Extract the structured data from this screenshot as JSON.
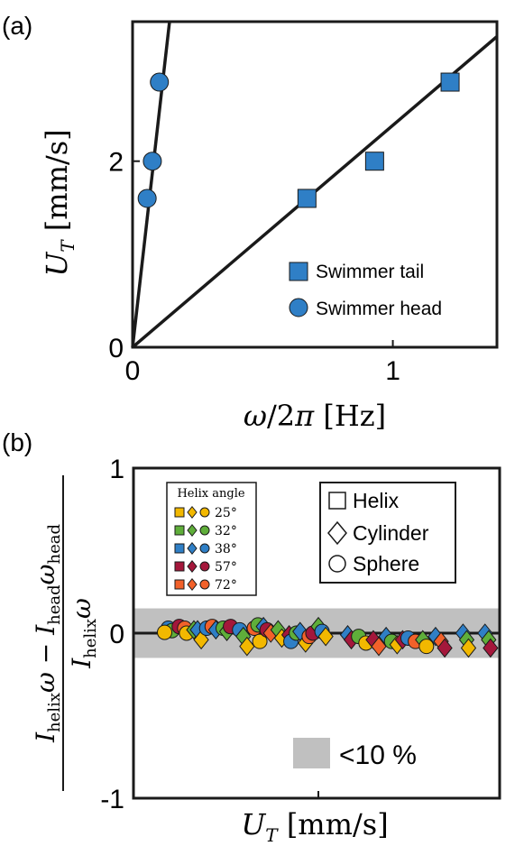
{
  "panel_a": {
    "label": "(a)",
    "chart_data": {
      "type": "scatter",
      "xlabel": "ω/2π [Hz]",
      "ylabel": "U_T [mm/s]",
      "xlim": [
        0,
        1.4
      ],
      "ylim": [
        0,
        3.5
      ],
      "xticks": [
        0,
        1
      ],
      "yticks": [
        0,
        2
      ],
      "xtick_labels": [
        "0",
        "1"
      ],
      "ytick_labels": [
        "0",
        "2"
      ],
      "grid": false,
      "legend_position": "bottom-right",
      "series": [
        {
          "name": "Swimmer tail",
          "marker": "square",
          "color": "#2f7fc6",
          "x": [
            0.67,
            0.93,
            1.22
          ],
          "y": [
            1.6,
            2.0,
            2.85
          ],
          "fit_line": {
            "x": [
              0,
              1.4
            ],
            "y": [
              0,
              3.34
            ]
          }
        },
        {
          "name": "Swimmer head",
          "marker": "circle",
          "color": "#2f7fc6",
          "x": [
            0.056,
            0.076,
            0.103
          ],
          "y": [
            1.6,
            2.0,
            2.85
          ],
          "fit_line": {
            "x": [
              0,
              0.142
            ],
            "y": [
              0,
              3.5
            ]
          }
        }
      ]
    }
  },
  "panel_b": {
    "label": "(b)",
    "ylabel_parts": {
      "i1": "I",
      "s1": "helix",
      "w1": "ω",
      "minus": " − ",
      "i2": "I",
      "s2": "head",
      "w2": "ω",
      "s3": "head",
      "i3": "I",
      "s4": "helix",
      "w3": "ω"
    },
    "xlabel": "U_T [mm/s]",
    "chart_data": {
      "type": "scatter",
      "ylim": [
        -1,
        1
      ],
      "yticks": [
        -1,
        0,
        1
      ],
      "ytick_labels": [
        "-1",
        "0",
        "1"
      ],
      "xlim": [
        0,
        1
      ],
      "grid": false,
      "band": {
        "y_min": -0.15,
        "y_max": 0.15,
        "color": "#c0c0c0",
        "label": "<10 %"
      },
      "zero_line": 0,
      "helix_angle_legend": {
        "title": "Helix angle",
        "entries": [
          {
            "label": "25°",
            "color": "#f2b800"
          },
          {
            "label": "32°",
            "color": "#5fae3a"
          },
          {
            "label": "38°",
            "color": "#2f7fc6"
          },
          {
            "label": "57°",
            "color": "#a4173b"
          },
          {
            "label": "72°",
            "color": "#f2612a"
          }
        ]
      },
      "shape_legend": [
        {
          "label": "Helix",
          "marker": "square"
        },
        {
          "label": "Cylinder",
          "marker": "diamond"
        },
        {
          "label": "Sphere",
          "marker": "circle"
        }
      ],
      "points": [
        {
          "x": 0.095,
          "y": 0.03,
          "m": "circle",
          "c": "#2f7fc6"
        },
        {
          "x": 0.105,
          "y": 0.015,
          "m": "circle",
          "c": "#5fae3a"
        },
        {
          "x": 0.085,
          "y": 0.005,
          "m": "circle",
          "c": "#f2b800"
        },
        {
          "x": 0.125,
          "y": 0.04,
          "m": "circle",
          "c": "#a4173b"
        },
        {
          "x": 0.14,
          "y": 0.03,
          "m": "circle",
          "c": "#f2612a"
        },
        {
          "x": 0.145,
          "y": 0.0,
          "m": "circle",
          "c": "#f2b800"
        },
        {
          "x": 0.165,
          "y": 0.02,
          "m": "diamond",
          "c": "#5fae3a"
        },
        {
          "x": 0.175,
          "y": 0.02,
          "m": "diamond",
          "c": "#2f7fc6"
        },
        {
          "x": 0.185,
          "y": -0.04,
          "m": "diamond",
          "c": "#f2b800"
        },
        {
          "x": 0.2,
          "y": 0.03,
          "m": "circle",
          "c": "#2f7fc6"
        },
        {
          "x": 0.215,
          "y": 0.04,
          "m": "circle",
          "c": "#f2612a"
        },
        {
          "x": 0.225,
          "y": 0.02,
          "m": "diamond",
          "c": "#2f7fc6"
        },
        {
          "x": 0.245,
          "y": 0.03,
          "m": "circle",
          "c": "#5fae3a"
        },
        {
          "x": 0.255,
          "y": 0.01,
          "m": "diamond",
          "c": "#5fae3a"
        },
        {
          "x": 0.265,
          "y": 0.04,
          "m": "circle",
          "c": "#a4173b"
        },
        {
          "x": 0.29,
          "y": 0.02,
          "m": "circle",
          "c": "#2f7fc6"
        },
        {
          "x": 0.3,
          "y": -0.02,
          "m": "diamond",
          "c": "#5fae3a"
        },
        {
          "x": 0.31,
          "y": -0.08,
          "m": "diamond",
          "c": "#f2b800"
        },
        {
          "x": 0.33,
          "y": 0.03,
          "m": "circle",
          "c": "#f2612a"
        },
        {
          "x": 0.34,
          "y": 0.05,
          "m": "circle",
          "c": "#5fae3a"
        },
        {
          "x": 0.345,
          "y": -0.05,
          "m": "circle",
          "c": "#f2b800"
        },
        {
          "x": 0.355,
          "y": 0.04,
          "m": "diamond",
          "c": "#2f7fc6"
        },
        {
          "x": 0.365,
          "y": 0.02,
          "m": "circle",
          "c": "#a4173b"
        },
        {
          "x": 0.375,
          "y": 0.0,
          "m": "diamond",
          "c": "#f2612a"
        },
        {
          "x": 0.395,
          "y": 0.02,
          "m": "diamond",
          "c": "#5fae3a"
        },
        {
          "x": 0.405,
          "y": -0.03,
          "m": "diamond",
          "c": "#f2b800"
        },
        {
          "x": 0.425,
          "y": -0.01,
          "m": "diamond",
          "c": "#a4173b"
        },
        {
          "x": 0.43,
          "y": -0.05,
          "m": "circle",
          "c": "#2f7fc6"
        },
        {
          "x": 0.445,
          "y": 0.0,
          "m": "circle",
          "c": "#5fae3a"
        },
        {
          "x": 0.455,
          "y": 0.01,
          "m": "diamond",
          "c": "#2f7fc6"
        },
        {
          "x": 0.47,
          "y": -0.06,
          "m": "diamond",
          "c": "#f2b800"
        },
        {
          "x": 0.48,
          "y": -0.02,
          "m": "circle",
          "c": "#f2612a"
        },
        {
          "x": 0.49,
          "y": 0.0,
          "m": "circle",
          "c": "#a4173b"
        },
        {
          "x": 0.505,
          "y": 0.04,
          "m": "diamond",
          "c": "#5fae3a"
        },
        {
          "x": 0.515,
          "y": 0.01,
          "m": "circle",
          "c": "#2f7fc6"
        },
        {
          "x": 0.525,
          "y": -0.02,
          "m": "diamond",
          "c": "#f2b800"
        },
        {
          "x": 0.585,
          "y": -0.01,
          "m": "diamond",
          "c": "#2f7fc6"
        },
        {
          "x": 0.595,
          "y": -0.04,
          "m": "diamond",
          "c": "#a4173b"
        },
        {
          "x": 0.615,
          "y": -0.02,
          "m": "circle",
          "c": "#5fae3a"
        },
        {
          "x": 0.635,
          "y": -0.06,
          "m": "circle",
          "c": "#f2b800"
        },
        {
          "x": 0.655,
          "y": -0.04,
          "m": "diamond",
          "c": "#a4173b"
        },
        {
          "x": 0.67,
          "y": -0.08,
          "m": "diamond",
          "c": "#f2612a"
        },
        {
          "x": 0.69,
          "y": -0.02,
          "m": "diamond",
          "c": "#2f7fc6"
        },
        {
          "x": 0.705,
          "y": -0.05,
          "m": "circle",
          "c": "#5fae3a"
        },
        {
          "x": 0.72,
          "y": -0.07,
          "m": "diamond",
          "c": "#f2b800"
        },
        {
          "x": 0.735,
          "y": -0.04,
          "m": "diamond",
          "c": "#a4173b"
        },
        {
          "x": 0.75,
          "y": -0.03,
          "m": "circle",
          "c": "#2f7fc6"
        },
        {
          "x": 0.77,
          "y": -0.05,
          "m": "circle",
          "c": "#f2612a"
        },
        {
          "x": 0.79,
          "y": -0.04,
          "m": "diamond",
          "c": "#5fae3a"
        },
        {
          "x": 0.8,
          "y": -0.08,
          "m": "circle",
          "c": "#f2b800"
        },
        {
          "x": 0.825,
          "y": -0.02,
          "m": "diamond",
          "c": "#2f7fc6"
        },
        {
          "x": 0.84,
          "y": -0.05,
          "m": "diamond",
          "c": "#f2612a"
        },
        {
          "x": 0.85,
          "y": -0.09,
          "m": "diamond",
          "c": "#a4173b"
        },
        {
          "x": 0.9,
          "y": 0.0,
          "m": "diamond",
          "c": "#2f7fc6"
        },
        {
          "x": 0.91,
          "y": -0.04,
          "m": "diamond",
          "c": "#5fae3a"
        },
        {
          "x": 0.915,
          "y": -0.09,
          "m": "diamond",
          "c": "#f2b800"
        },
        {
          "x": 0.96,
          "y": 0.0,
          "m": "diamond",
          "c": "#2f7fc6"
        },
        {
          "x": 0.97,
          "y": -0.04,
          "m": "diamond",
          "c": "#5fae3a"
        },
        {
          "x": 0.975,
          "y": -0.09,
          "m": "diamond",
          "c": "#a4173b"
        }
      ]
    }
  }
}
